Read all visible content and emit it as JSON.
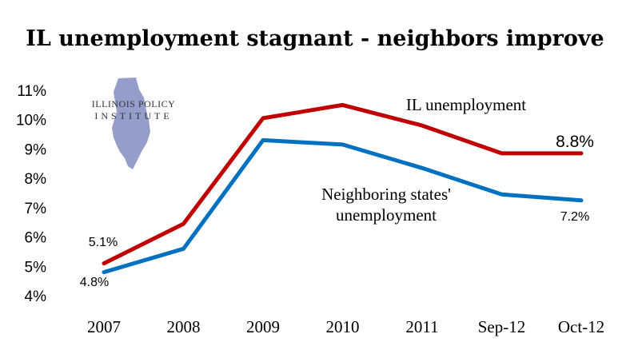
{
  "chart_data": {
    "type": "line",
    "title": "IL unemployment stagnant - neighbors improve",
    "categories": [
      "2007",
      "2008",
      "2009",
      "2010",
      "2011",
      "Sep-12",
      "Oct-12"
    ],
    "ylim": [
      4,
      11
    ],
    "yticks": [
      "4%",
      "5%",
      "6%",
      "7%",
      "8%",
      "9%",
      "10%",
      "11%"
    ],
    "grid": false,
    "series": [
      {
        "name": "IL unemployment",
        "color": "#c00000",
        "values": [
          5.1,
          6.45,
          10.05,
          10.5,
          9.8,
          8.85,
          8.85
        ]
      },
      {
        "name": "Neighboring states' unemployment",
        "name_lines": [
          "Neighboring states'",
          "unemployment"
        ],
        "color": "#0070c0",
        "values": [
          4.8,
          5.6,
          9.3,
          9.15,
          8.35,
          7.45,
          7.25
        ]
      }
    ],
    "data_labels": {
      "il_start": "5.1%",
      "il_end": "8.8%",
      "nb_start": "4.8%",
      "nb_end": "7.2%"
    },
    "logo": {
      "line1": "ILLINOIS POLICY",
      "line2": "INSTITUTE",
      "shape_color": "#8a93c4"
    }
  }
}
